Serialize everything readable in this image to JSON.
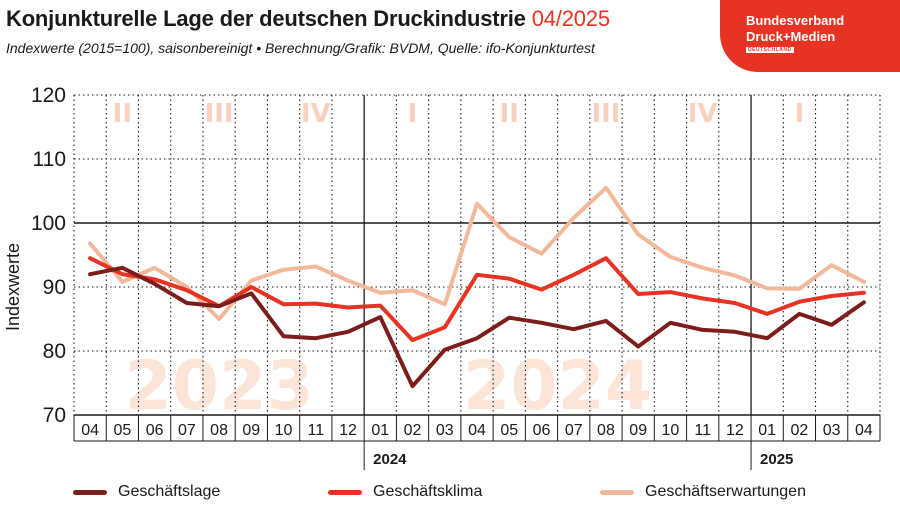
{
  "header": {
    "title": "Konjunkturelle Lage der deutschen Druckindustrie",
    "title_date": "04/2025",
    "subtitle": "Indexwerte (2015=100), saisonbereinigt • Berechnung/Grafik: BVDM, Quelle: ifo-Konjunkturtest"
  },
  "logo": {
    "line1": "Bundesverband",
    "line2": "Druck+Medien",
    "line3": "DEUTSCHLAND",
    "color": "#e63323"
  },
  "chart_data": {
    "type": "line",
    "ylabel": "Indexwerte",
    "ylim": [
      70,
      120
    ],
    "yticks": [
      70,
      80,
      90,
      100,
      110,
      120
    ],
    "reference_line": 100,
    "grid": true,
    "categories": [
      "04",
      "05",
      "06",
      "07",
      "08",
      "09",
      "10",
      "11",
      "12",
      "01",
      "02",
      "03",
      "04",
      "05",
      "06",
      "07",
      "08",
      "09",
      "10",
      "11",
      "12",
      "01",
      "02",
      "03",
      "04"
    ],
    "year_labels": [
      {
        "label": "2024",
        "start_index": 9
      },
      {
        "label": "2025",
        "start_index": 21
      }
    ],
    "quarter_labels": [
      {
        "label": "II",
        "start_index": 0,
        "end_index": 2
      },
      {
        "label": "III",
        "start_index": 3,
        "end_index": 5
      },
      {
        "label": "IV",
        "start_index": 6,
        "end_index": 8
      },
      {
        "label": "I",
        "start_index": 9,
        "end_index": 11
      },
      {
        "label": "II",
        "start_index": 12,
        "end_index": 14
      },
      {
        "label": "III",
        "start_index": 15,
        "end_index": 17
      },
      {
        "label": "IV",
        "start_index": 18,
        "end_index": 20
      },
      {
        "label": "I",
        "start_index": 21,
        "end_index": 23
      }
    ],
    "watermarks": [
      {
        "label": "2023",
        "start_index": 0,
        "end_index": 8
      },
      {
        "label": "2024",
        "start_index": 12,
        "end_index": 17
      }
    ],
    "series": [
      {
        "name": "Geschäftslage",
        "color": "#7b1d1a",
        "values": [
          92.0,
          93.0,
          90.5,
          87.5,
          87.0,
          89.0,
          82.3,
          82.0,
          83.0,
          85.3,
          74.5,
          80.2,
          82.0,
          85.2,
          84.4,
          83.4,
          84.7,
          80.7,
          84.4,
          83.3,
          83.0,
          82.0,
          85.8,
          84.1,
          87.6
        ]
      },
      {
        "name": "Geschäftsklima",
        "color": "#e63323",
        "values": [
          94.5,
          92.0,
          91.2,
          89.5,
          87.0,
          90.0,
          87.3,
          87.4,
          86.8,
          87.1,
          81.7,
          83.7,
          91.9,
          91.3,
          89.6,
          91.9,
          94.5,
          88.9,
          89.2,
          88.2,
          87.5,
          85.8,
          87.7,
          88.6,
          89.1
        ]
      },
      {
        "name": "Geschäftserwartungen",
        "color": "#f2b89a",
        "values": [
          96.8,
          90.8,
          93.0,
          90.0,
          85.0,
          91.0,
          92.7,
          93.2,
          91.0,
          89.1,
          89.5,
          87.3,
          103.0,
          97.8,
          95.2,
          100.8,
          105.5,
          98.2,
          94.7,
          93.0,
          91.8,
          89.8,
          89.7,
          93.4,
          90.8
        ]
      }
    ]
  }
}
